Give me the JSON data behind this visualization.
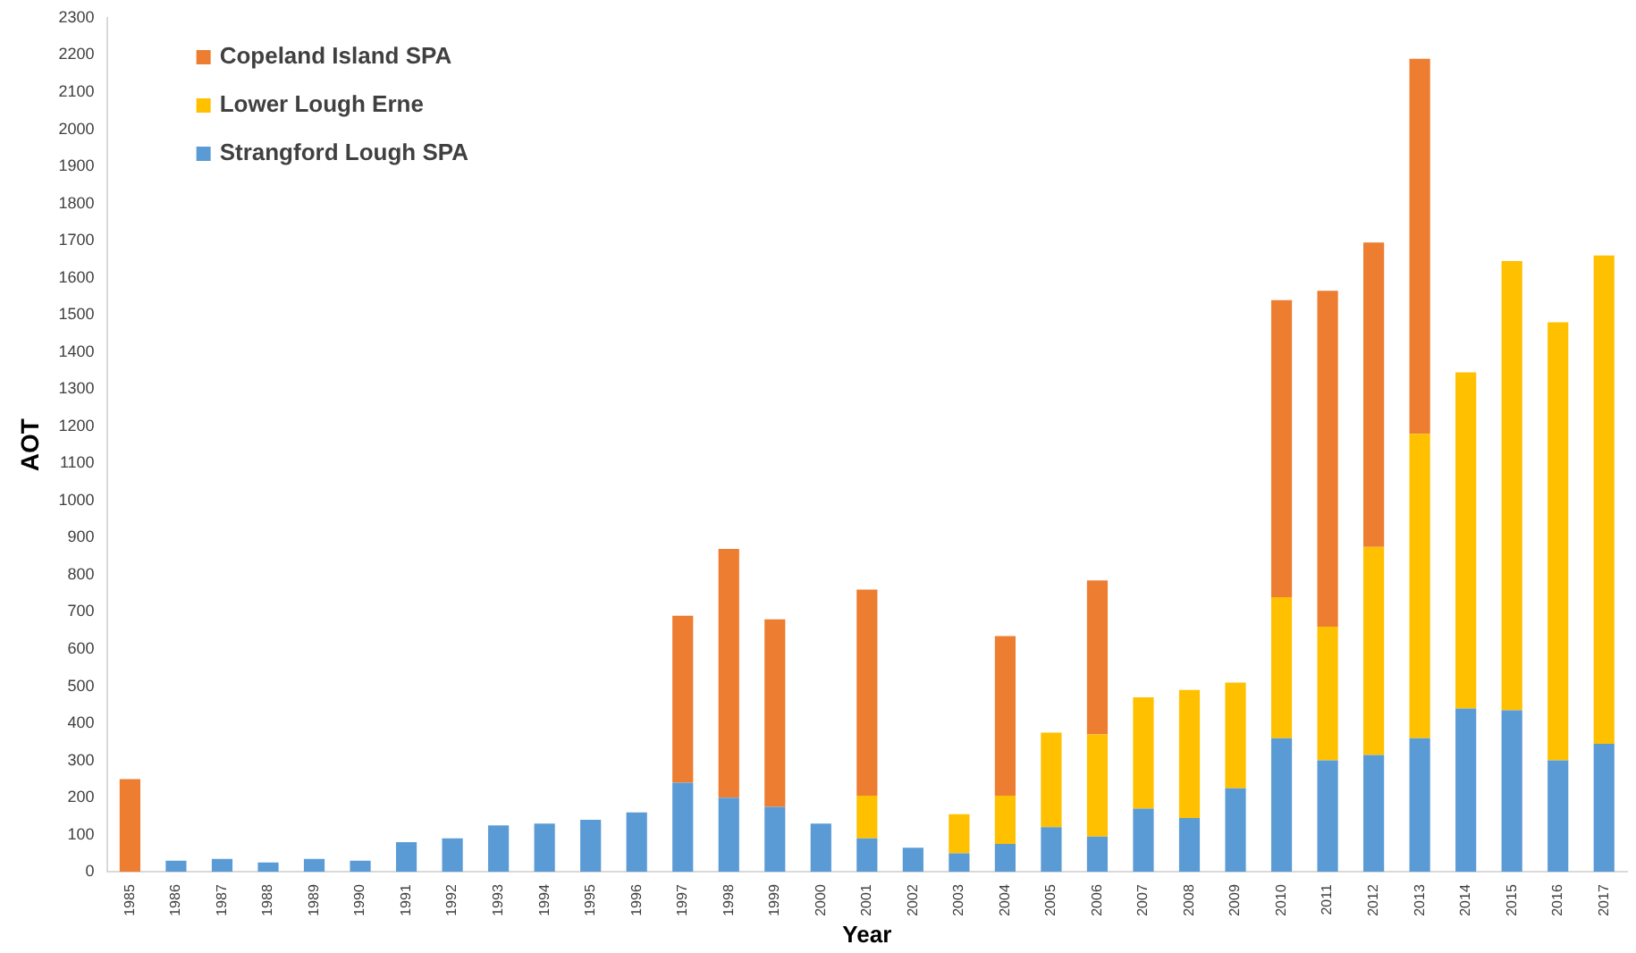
{
  "chart_data": {
    "type": "bar",
    "stacked": true,
    "xlabel": "Year",
    "ylabel": "AOT",
    "categories": [
      "1985",
      "1986",
      "1987",
      "1988",
      "1989",
      "1990",
      "1991",
      "1992",
      "1993",
      "1994",
      "1995",
      "1996",
      "1997",
      "1998",
      "1999",
      "2000",
      "2001",
      "2002",
      "2003",
      "2004",
      "2005",
      "2006",
      "2007",
      "2008",
      "2009",
      "2010",
      "2011",
      "2012",
      "2013",
      "2014",
      "2015",
      "2016",
      "2017"
    ],
    "series": [
      {
        "name": "Strangford Lough SPA",
        "color": "#5b9bd5",
        "values": [
          null,
          30,
          35,
          25,
          35,
          30,
          80,
          90,
          125,
          130,
          140,
          160,
          240,
          200,
          175,
          130,
          90,
          65,
          50,
          75,
          120,
          95,
          170,
          145,
          225,
          360,
          300,
          315,
          360,
          440,
          435,
          300,
          345
        ]
      },
      {
        "name": "Lower Lough Erne",
        "color": "#ffc000",
        "values": [
          null,
          null,
          null,
          null,
          null,
          null,
          null,
          null,
          null,
          null,
          null,
          null,
          null,
          null,
          null,
          null,
          115,
          null,
          105,
          130,
          255,
          275,
          300,
          345,
          285,
          380,
          360,
          560,
          820,
          905,
          1210,
          1180,
          1315
        ]
      },
      {
        "name": "Copeland Island SPA",
        "color": "#ed7d31",
        "values": [
          250,
          null,
          null,
          null,
          null,
          null,
          null,
          null,
          null,
          null,
          null,
          null,
          450,
          670,
          505,
          null,
          555,
          null,
          null,
          430,
          null,
          415,
          null,
          null,
          null,
          800,
          905,
          820,
          1010,
          null,
          null,
          null,
          null
        ]
      }
    ],
    "ylim": [
      0,
      2300
    ],
    "yticks": [
      0,
      100,
      200,
      300,
      400,
      500,
      600,
      700,
      800,
      900,
      1000,
      1100,
      1200,
      1300,
      1400,
      1500,
      1600,
      1700,
      1800,
      1900,
      2000,
      2100,
      2200,
      2300
    ],
    "grid": false,
    "legend": "top left"
  }
}
